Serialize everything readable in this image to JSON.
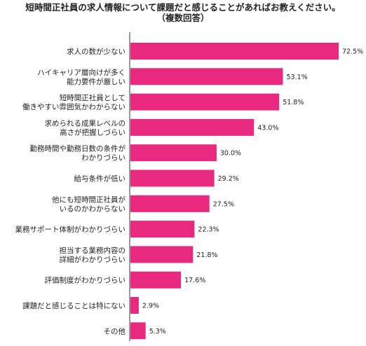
{
  "chart_data": {
    "type": "bar",
    "orientation": "horizontal",
    "title": "短時間正社員の求人情報について課題だと感じることがあればお教えください。",
    "subtitle": "（複数回答）",
    "categories": [
      [
        "求人の数が少ない"
      ],
      [
        "ハイキャリア層向けが多く",
        "能力要件が厳しい"
      ],
      [
        "短時間正社員として",
        "働きやすい雰囲気かわからない"
      ],
      [
        "求められる成果レベルの",
        "高さが把握しづらい"
      ],
      [
        "勤務時間や勤務日数の条件が",
        "わかりづらい"
      ],
      [
        "給与条件が低い"
      ],
      [
        "他にも短時間正社員が",
        "いるのかわからない"
      ],
      [
        "業務サポート体制がわかりづらい"
      ],
      [
        "担当する業務内容の",
        "詳細がわかりづらい"
      ],
      [
        "評価制度がわかりづらい"
      ],
      [
        "課題だと感じることは特にない"
      ],
      [
        "その他"
      ]
    ],
    "values": [
      72.5,
      53.1,
      51.8,
      43.0,
      30.0,
      29.2,
      27.5,
      22.3,
      21.8,
      17.6,
      2.9,
      5.3
    ],
    "value_labels": [
      "72.5%",
      "53.1%",
      "51.8%",
      "43.0%",
      "30.0%",
      "29.2%",
      "27.5%",
      "22.3%",
      "21.8%",
      "17.6%",
      "2.9%",
      "5.3%"
    ],
    "bar_color": "#E8297F",
    "xlim": [
      0,
      100
    ],
    "grid": false,
    "legend": "none"
  }
}
